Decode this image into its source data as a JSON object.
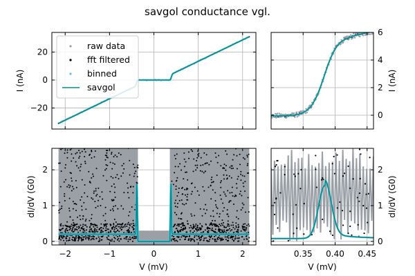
{
  "figure": {
    "title": "savgol conductance vgl."
  },
  "colors": {
    "raw": "#9aa0a6",
    "fft": "#000000",
    "binned": "#5bc8e6",
    "savgol": "#008b8b",
    "grid": "#b0b0b0"
  },
  "chart_data": [
    {
      "id": "iv-full",
      "type": "line",
      "ylabel": "I (nA)",
      "xlim": [
        -2.3,
        2.3
      ],
      "ylim": [
        -35,
        34
      ],
      "xticks": [
        -2,
        -1,
        0,
        1,
        2
      ],
      "yticks": [
        -20,
        0,
        20
      ],
      "ytick_labels": [
        "−20",
        "0",
        "20"
      ],
      "grid": true,
      "legend": "upper-left",
      "legend_entries": [
        "raw data",
        "fft filtered",
        "binned",
        "savgol"
      ],
      "series": [
        {
          "name": "raw data",
          "x": [
            -2.15,
            -1.5,
            -1.0,
            -0.5,
            -0.4,
            -0.38,
            0.38,
            0.4,
            0.5,
            1.0,
            1.5,
            2.15
          ],
          "y": [
            -31.5,
            -21.5,
            -13.9,
            -6.3,
            -4.5,
            0,
            0,
            4.5,
            6.3,
            13.9,
            21.5,
            31.5
          ]
        },
        {
          "name": "savgol",
          "x": [
            -2.15,
            -1.5,
            -1.0,
            -0.5,
            -0.4,
            -0.38,
            0.38,
            0.4,
            0.5,
            1.0,
            1.5,
            2.15
          ],
          "y": [
            -31.5,
            -21.5,
            -13.9,
            -6.3,
            -4.5,
            0,
            0,
            4.5,
            6.3,
            13.9,
            21.5,
            31.5
          ]
        }
      ]
    },
    {
      "id": "iv-zoom",
      "type": "line",
      "ylabel": "I (nA)",
      "xlim": [
        0.3,
        0.46
      ],
      "ylim": [
        -1,
        6
      ],
      "xticks": [
        0.35,
        0.4,
        0.45
      ],
      "yticks": [
        0,
        2,
        4,
        6
      ],
      "ytick_labels": [
        "0",
        "2",
        "4",
        "6"
      ],
      "grid": true,
      "series": [
        {
          "name": "raw data",
          "x": [
            0.3,
            0.33,
            0.36,
            0.37,
            0.375,
            0.38,
            0.385,
            0.39,
            0.395,
            0.4,
            0.42,
            0.44,
            0.46
          ],
          "y": [
            -0.05,
            0.0,
            0.35,
            1.1,
            1.8,
            2.6,
            3.35,
            3.95,
            4.3,
            4.5,
            4.9,
            5.3,
            5.65
          ]
        },
        {
          "name": "savgol",
          "x": [
            0.3,
            0.33,
            0.36,
            0.37,
            0.375,
            0.38,
            0.385,
            0.39,
            0.395,
            0.4,
            0.42,
            0.44,
            0.46
          ],
          "y": [
            -0.05,
            0.0,
            0.35,
            1.1,
            1.8,
            2.6,
            3.35,
            3.95,
            4.3,
            4.5,
            4.9,
            5.3,
            5.65
          ]
        }
      ]
    },
    {
      "id": "didv-full",
      "type": "scatter",
      "xlabel": "V (mV)",
      "ylabel": "dI/dV (G0)",
      "xlim": [
        -2.3,
        2.3
      ],
      "ylim": [
        -0.1,
        2.6
      ],
      "xticks": [
        -2,
        -1,
        0,
        1,
        2
      ],
      "xtick_labels": [
        "−2",
        "−1",
        "0",
        "1",
        "2"
      ],
      "yticks": [
        0,
        1,
        2
      ],
      "ytick_labels": [
        "0",
        "1",
        "2"
      ],
      "grid": true,
      "series": [
        {
          "name": "savgol",
          "x": [
            -2.15,
            -1.0,
            -0.45,
            -0.41,
            -0.39,
            -0.37,
            -0.3,
            0.0,
            0.3,
            0.37,
            0.39,
            0.41,
            0.45,
            1.0,
            2.15
          ],
          "y": [
            0.2,
            0.2,
            0.22,
            0.6,
            1.65,
            0.3,
            0.0,
            0.0,
            0.0,
            0.3,
            1.65,
            0.6,
            0.22,
            0.2,
            0.2
          ]
        }
      ]
    },
    {
      "id": "didv-zoom",
      "type": "line",
      "xlabel": "V (mV)",
      "ylabel": "dI/dV (G0)",
      "xlim": [
        0.3,
        0.46
      ],
      "ylim": [
        -0.1,
        2.6
      ],
      "xticks": [
        0.35,
        0.4,
        0.45
      ],
      "xtick_labels": [
        "0.35",
        "0.40",
        "0.45"
      ],
      "yticks": [
        0,
        1,
        2
      ],
      "ytick_labels": [
        "0",
        "1",
        "2"
      ],
      "grid": true,
      "series": [
        {
          "name": "savgol",
          "x": [
            0.3,
            0.34,
            0.36,
            0.37,
            0.375,
            0.38,
            0.385,
            0.39,
            0.395,
            0.4,
            0.41,
            0.43,
            0.46
          ],
          "y": [
            0.05,
            0.15,
            0.4,
            0.8,
            1.2,
            1.5,
            1.55,
            1.35,
            1.0,
            0.7,
            0.4,
            0.2,
            0.12
          ]
        }
      ]
    }
  ]
}
